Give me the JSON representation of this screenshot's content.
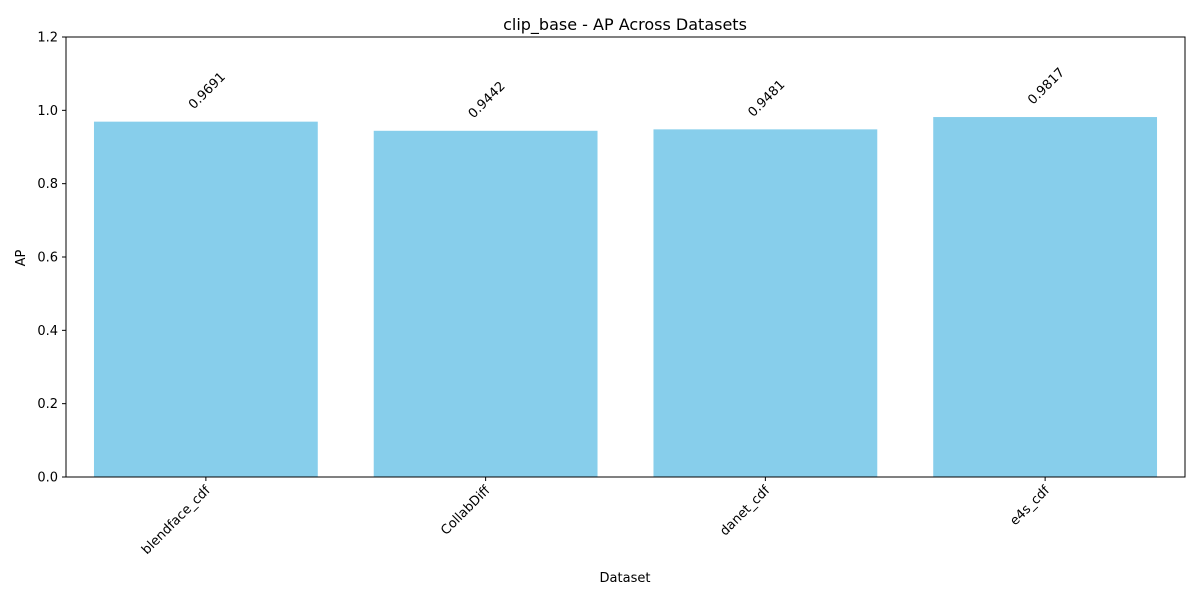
{
  "chart_data": {
    "type": "bar",
    "title": "clip_base - AP Across Datasets",
    "xlabel": "Dataset",
    "ylabel": "AP",
    "categories": [
      "blendface_cdf",
      "CollabDiff",
      "danet_cdf",
      "e4s_cdf"
    ],
    "values": [
      0.9691,
      0.9442,
      0.9481,
      0.9817
    ],
    "data_labels": [
      "0.9691",
      "0.9442",
      "0.9481",
      "0.9817"
    ],
    "ylim": [
      0,
      1.2
    ],
    "yticks": [
      0.0,
      0.2,
      0.4,
      0.6,
      0.8,
      1.0,
      1.2
    ],
    "ytick_labels": [
      "0.0",
      "0.2",
      "0.4",
      "0.6",
      "0.8",
      "1.0",
      "1.2"
    ],
    "bar_color": "#87ceeb",
    "grid": false,
    "legend": "none"
  }
}
